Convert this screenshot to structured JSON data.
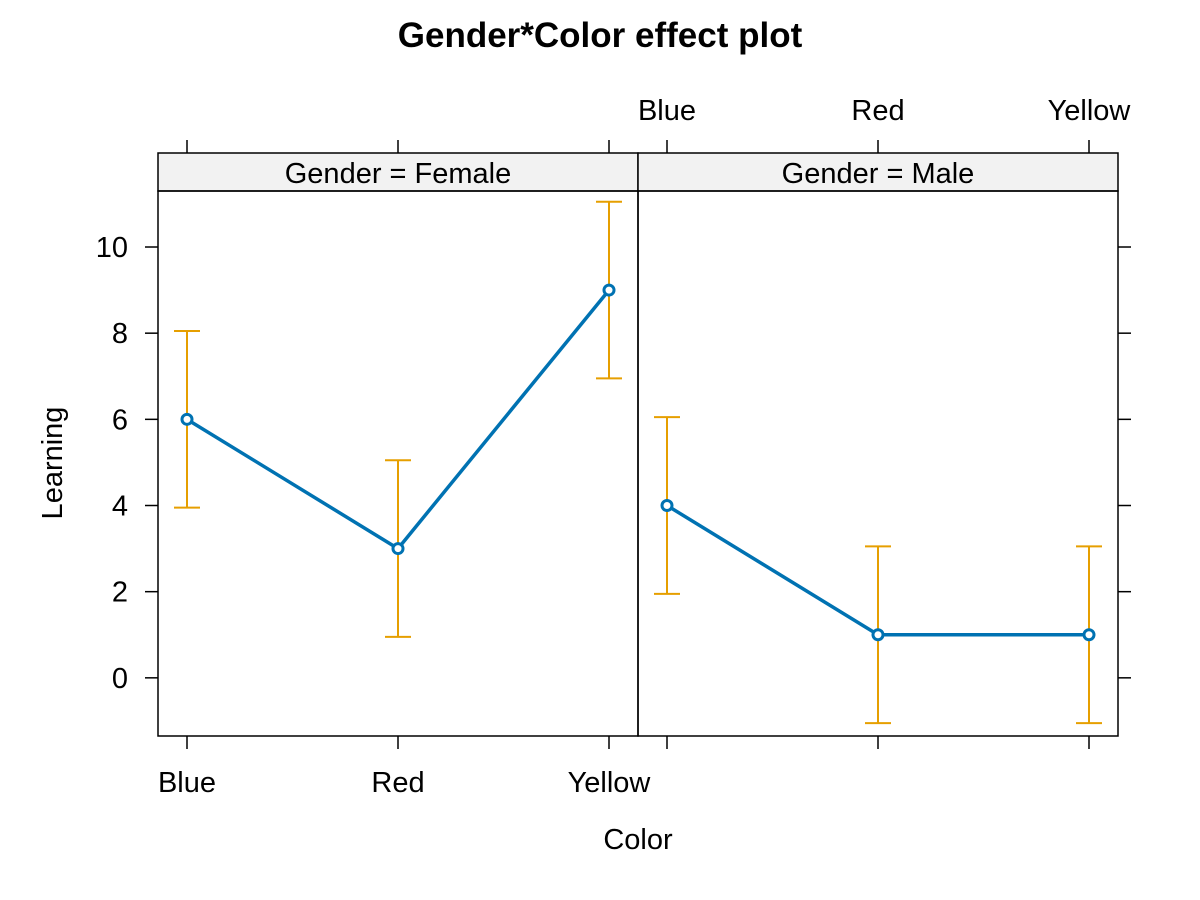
{
  "chart_data": {
    "type": "line",
    "title": "Gender*Color effect plot",
    "xlabel": "Color",
    "ylabel": "Learning",
    "categories": [
      "Blue",
      "Red",
      "Yellow"
    ],
    "ylim": [
      -1.35,
      11.3
    ],
    "yticks": [
      0,
      2,
      4,
      6,
      8,
      10
    ],
    "grid": false,
    "line_color": "#0072B2",
    "errorbar_color": "#E69F00",
    "panels": [
      {
        "strip": "Gender = Female",
        "values": [
          6,
          3,
          9
        ],
        "lower": [
          3.95,
          0.95,
          6.95
        ],
        "upper": [
          8.05,
          5.05,
          11.05
        ]
      },
      {
        "strip": "Gender = Male",
        "values": [
          4,
          1,
          1
        ],
        "lower": [
          1.95,
          -1.05,
          -1.05
        ],
        "upper": [
          6.05,
          3.05,
          3.05
        ]
      }
    ]
  }
}
